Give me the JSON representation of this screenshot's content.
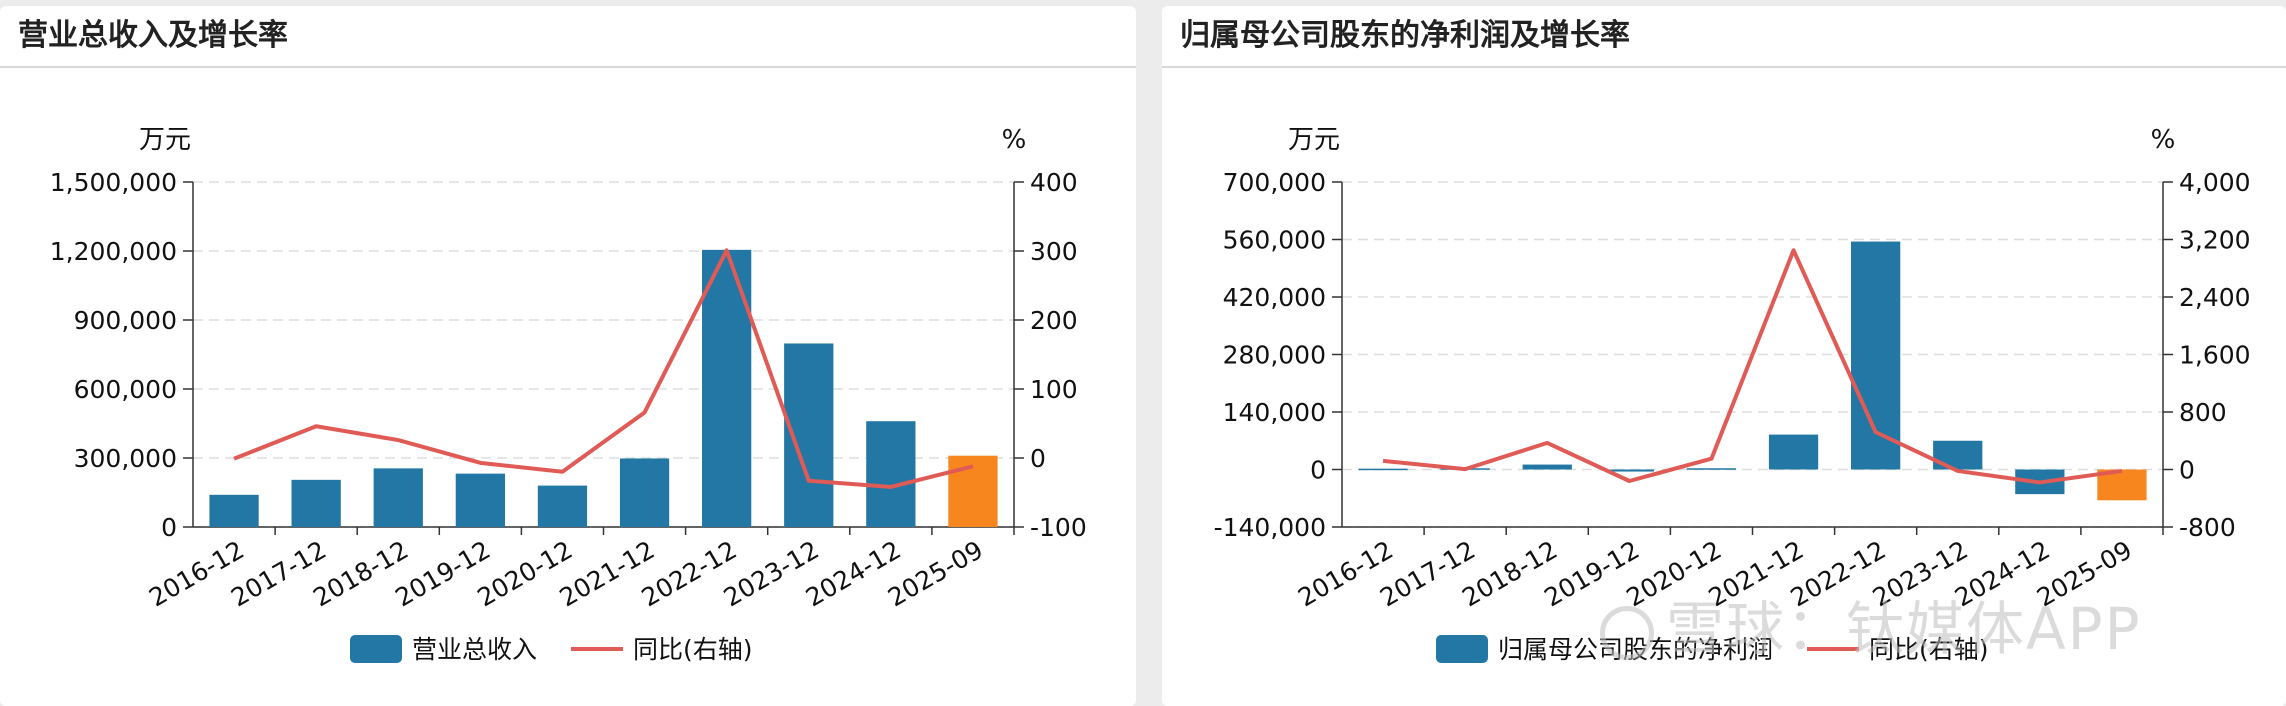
{
  "panels": [
    {
      "title": "营业总收入及增长率",
      "left_unit": "万元",
      "right_unit": "%",
      "legend": {
        "bar_label": "营业总收入",
        "line_label": "同比(右轴)"
      }
    },
    {
      "title": "归属母公司股东的净利润及增长率",
      "left_unit": "万元",
      "right_unit": "%",
      "legend": {
        "bar_label": "归属母公司股东的净利润",
        "line_label": "同比(右轴)"
      }
    }
  ],
  "colors": {
    "bar": "#2277a4",
    "bar_highlight": "#f7861e",
    "line": "#e05a56",
    "grid": "#dddddd"
  },
  "watermark": "雪球：钛媒体APP",
  "chart_data": [
    {
      "type": "bar",
      "title": "营业总收入及增长率",
      "categories": [
        "2016-12",
        "2017-12",
        "2018-12",
        "2019-12",
        "2020-12",
        "2021-12",
        "2022-12",
        "2023-12",
        "2024-12",
        "2025-09"
      ],
      "series": [
        {
          "name": "营业总收入",
          "axis": "left",
          "type": "bar",
          "values": [
            140000,
            205000,
            255000,
            232000,
            180000,
            298000,
            1205000,
            798000,
            460000,
            310000
          ]
        },
        {
          "name": "同比(右轴)",
          "axis": "right",
          "type": "line",
          "values": [
            -1,
            46,
            26,
            -7,
            -20,
            66,
            301,
            -33,
            -42,
            -12
          ]
        }
      ],
      "highlight_last": true,
      "ylim_left": [
        0,
        1500000
      ],
      "yticks_left": [
        "1,500,000",
        "1,200,000",
        "900,000",
        "600,000",
        "300,000",
        "0"
      ],
      "ylim_right": [
        -100,
        400
      ],
      "yticks_right": [
        "400",
        "300",
        "200",
        "100",
        "0",
        "-100"
      ],
      "grid": true,
      "legend_position": "bottom"
    },
    {
      "type": "bar",
      "title": "归属母公司股东的净利润及增长率",
      "categories": [
        "2016-12",
        "2017-12",
        "2018-12",
        "2019-12",
        "2020-12",
        "2021-12",
        "2022-12",
        "2023-12",
        "2024-12",
        "2025-09"
      ],
      "series": [
        {
          "name": "归属母公司股东的净利润",
          "axis": "left",
          "type": "bar",
          "values": [
            2000,
            3000,
            12000,
            -5000,
            3000,
            85000,
            555000,
            70000,
            -60000,
            -75000
          ]
        },
        {
          "name": "同比(右轴)",
          "axis": "right",
          "type": "line",
          "values": [
            120,
            5,
            370,
            -160,
            150,
            3050,
            520,
            -20,
            -180,
            -20
          ]
        }
      ],
      "highlight_last": true,
      "ylim_left": [
        -140000,
        700000
      ],
      "yticks_left": [
        "700,000",
        "560,000",
        "420,000",
        "280,000",
        "140,000",
        "0",
        "-140,000"
      ],
      "ylim_right": [
        -800,
        4000
      ],
      "yticks_right": [
        "4,000",
        "3,200",
        "2,400",
        "1,600",
        "800",
        "0",
        "-800"
      ],
      "grid": true,
      "legend_position": "bottom"
    }
  ]
}
